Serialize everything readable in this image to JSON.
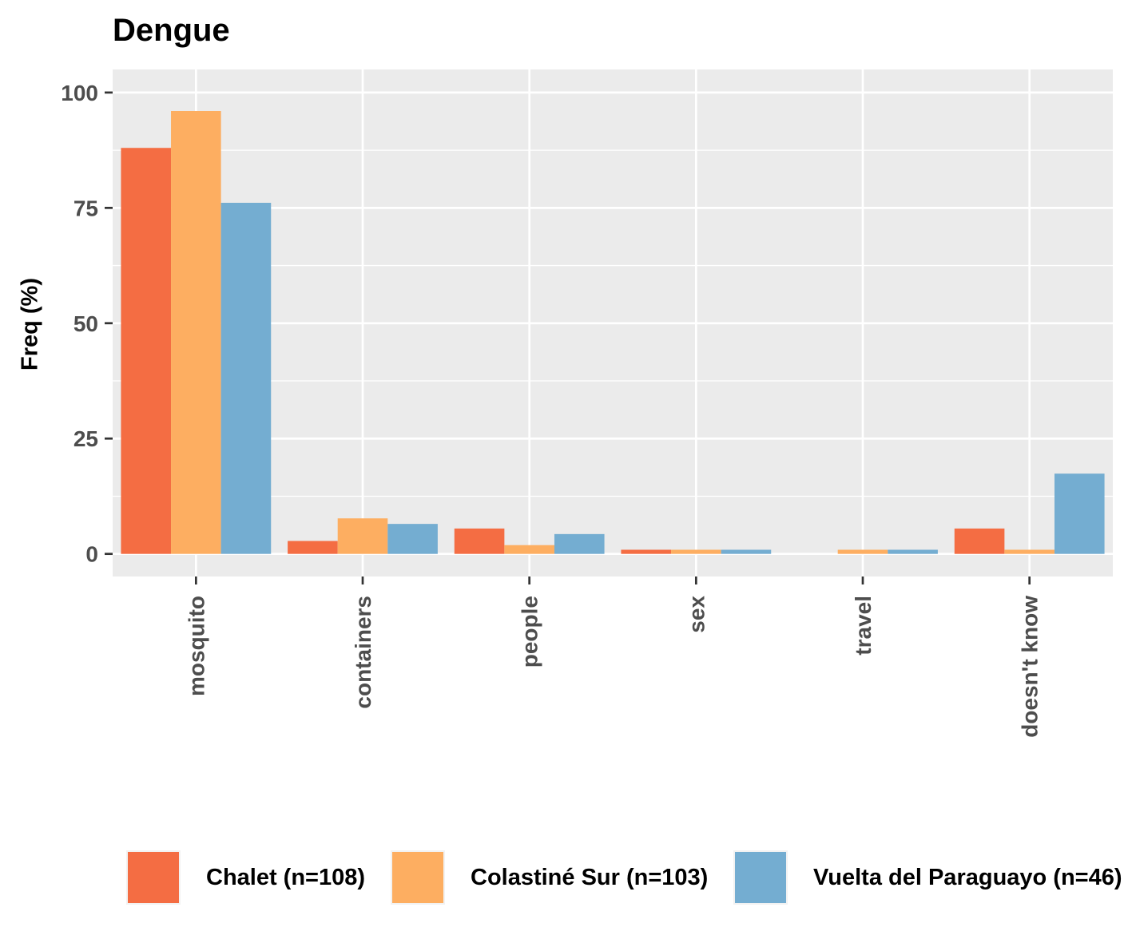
{
  "chart_data": {
    "type": "bar",
    "title": "Dengue",
    "xlabel": "",
    "ylabel": "Freq (%)",
    "categories": [
      "mosquito",
      "containers",
      "people",
      "sex",
      "travel",
      "doesn't know"
    ],
    "series": [
      {
        "name": "Chalet (n=108)",
        "color": "#f46d43",
        "values": [
          88,
          2.8,
          5.5,
          0.9,
          0,
          5.5
        ]
      },
      {
        "name": "Colastiné Sur (n=103)",
        "color": "#fdae61",
        "values": [
          96,
          7.7,
          1.9,
          0.9,
          0.9,
          0.9
        ]
      },
      {
        "name": "Vuelta del Paraguayo (n=46)",
        "color": "#74add1",
        "values": [
          76.1,
          6.5,
          4.3,
          0.9,
          0.9,
          17.4
        ]
      }
    ],
    "ylim": [
      -4.9,
      105
    ],
    "yticks": [
      0,
      25,
      50,
      75,
      100
    ],
    "grid": true,
    "legend_position": "bottom"
  }
}
